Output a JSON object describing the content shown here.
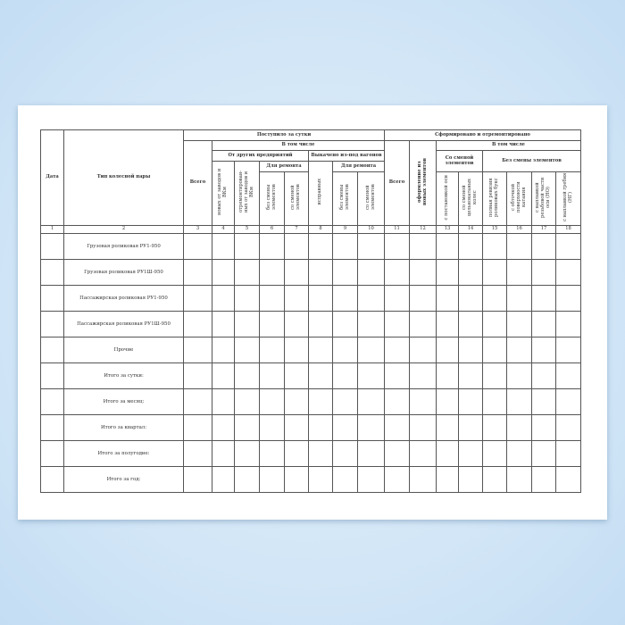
{
  "header": {
    "date": "Дата",
    "type": "Тип колесной пары",
    "received": "Поступило за сутки",
    "incl": "В том числе",
    "total": "Всего",
    "other": "От других предприятий",
    "rolled": "Выкачено из-под вагонов",
    "repair": "Для ремонта",
    "new_from": "новых от заводов и ВКм",
    "repaired_from": "отремонтирован-ных от заводов и ВКм",
    "no_change": "без смены элементов",
    "with_change": "со сменой элементов",
    "serviceable": "исправных",
    "formed": "Сформировано и отремонтировано",
    "total2": "Всего",
    "formed_new": "оформление из новых элементов",
    "with_change2": "Со сменой элементов",
    "without_change": "Без смены элементов",
    "c13": "с постановкой оси",
    "c14": "со сменой цельнокатаных колес",
    "c15": "полная ревизия роликовых букс",
    "c16": "с обточкой поверхности катания",
    "c17": "с наплавкой резьбовой части оси (НО)",
    "c18": "с наплавкой гребня (НГ)"
  },
  "numbers": [
    "1",
    "2",
    "3",
    "4",
    "5",
    "6",
    "7",
    "8",
    "9",
    "10",
    "11",
    "12",
    "13",
    "14",
    "15",
    "16",
    "17",
    "18"
  ],
  "rows": [
    "Грузовая роликовая РУ1-950",
    "Грузовая роликовая РУ1Ш-950",
    "Пассажирская роликовая РУ1-950",
    "Пассажирская роликовая РУ1Ш-950",
    "Прочие",
    "Итого за сутки:",
    "Итого за месяц:",
    "Итого за квартал:",
    "Итого за полугодие:",
    "Итого за год:"
  ]
}
